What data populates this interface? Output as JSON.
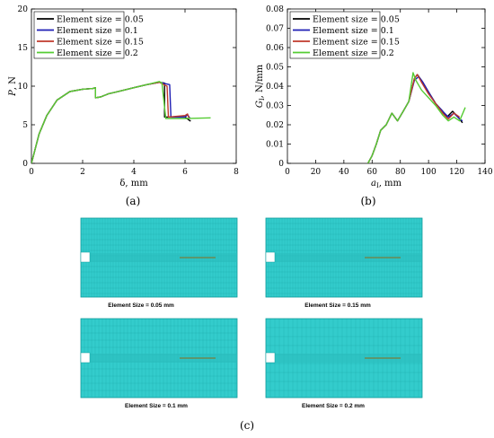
{
  "chart_data": [
    {
      "type": "line",
      "panel_label": "(a)",
      "xlabel": "δ, mm",
      "ylabel": "P, N",
      "xlim": [
        0,
        8
      ],
      "ylim": [
        0,
        20
      ],
      "xticks": [
        "0",
        "2",
        "4",
        "6",
        "8"
      ],
      "yticks": [
        "0",
        "5",
        "10",
        "15",
        "20"
      ],
      "grid": false,
      "legend_position": "top-left",
      "series": [
        {
          "name": "Element size = 0.05",
          "color": "#000000",
          "points": [
            [
              0,
              0
            ],
            [
              0.3,
              3.8
            ],
            [
              0.6,
              6.2
            ],
            [
              1.0,
              8.2
            ],
            [
              1.5,
              9.3
            ],
            [
              2.0,
              9.6
            ],
            [
              2.4,
              9.7
            ],
            [
              2.5,
              9.8
            ],
            [
              2.5,
              8.5
            ],
            [
              2.7,
              8.6
            ],
            [
              3.0,
              9.0
            ],
            [
              3.5,
              9.4
            ],
            [
              4.0,
              9.8
            ],
            [
              4.5,
              10.2
            ],
            [
              5.0,
              10.5
            ],
            [
              5.2,
              10.4
            ],
            [
              5.2,
              6.0
            ],
            [
              6.0,
              6.0
            ],
            [
              6.2,
              5.5
            ],
            [
              6.2,
              5.6
            ]
          ]
        },
        {
          "name": "Element size = 0.1",
          "color": "#1f1fb4",
          "points": [
            [
              0,
              0
            ],
            [
              0.3,
              3.8
            ],
            [
              0.6,
              6.2
            ],
            [
              1.0,
              8.2
            ],
            [
              1.5,
              9.3
            ],
            [
              2.0,
              9.6
            ],
            [
              2.4,
              9.7
            ],
            [
              2.5,
              9.8
            ],
            [
              2.5,
              8.5
            ],
            [
              2.7,
              8.6
            ],
            [
              3.0,
              9.0
            ],
            [
              3.5,
              9.4
            ],
            [
              4.0,
              9.8
            ],
            [
              4.5,
              10.2
            ],
            [
              5.0,
              10.5
            ],
            [
              5.4,
              10.2
            ],
            [
              5.45,
              6.0
            ],
            [
              6.0,
              6.0
            ],
            [
              6.1,
              6.3
            ],
            [
              6.2,
              5.8
            ]
          ]
        },
        {
          "name": "Element size = 0.15",
          "color": "#c0392b",
          "points": [
            [
              0,
              0
            ],
            [
              0.3,
              3.8
            ],
            [
              0.6,
              6.2
            ],
            [
              1.0,
              8.2
            ],
            [
              1.5,
              9.3
            ],
            [
              2.0,
              9.6
            ],
            [
              2.4,
              9.7
            ],
            [
              2.5,
              9.8
            ],
            [
              2.5,
              8.5
            ],
            [
              2.7,
              8.6
            ],
            [
              3.0,
              9.0
            ],
            [
              3.5,
              9.4
            ],
            [
              4.0,
              9.8
            ],
            [
              4.5,
              10.2
            ],
            [
              5.0,
              10.5
            ],
            [
              5.3,
              10.0
            ],
            [
              5.35,
              6.0
            ],
            [
              6.0,
              6.2
            ],
            [
              6.1,
              6.4
            ],
            [
              6.15,
              5.9
            ]
          ]
        },
        {
          "name": "Element size = 0.2",
          "color": "#55cc33",
          "points": [
            [
              0,
              0
            ],
            [
              0.3,
              3.8
            ],
            [
              0.6,
              6.2
            ],
            [
              1.0,
              8.2
            ],
            [
              1.5,
              9.3
            ],
            [
              2.0,
              9.6
            ],
            [
              2.4,
              9.7
            ],
            [
              2.5,
              9.8
            ],
            [
              2.5,
              8.5
            ],
            [
              2.7,
              8.6
            ],
            [
              3.0,
              9.0
            ],
            [
              3.5,
              9.4
            ],
            [
              4.0,
              9.8
            ],
            [
              4.5,
              10.2
            ],
            [
              5.0,
              10.6
            ],
            [
              5.1,
              10.4
            ],
            [
              5.25,
              5.8
            ],
            [
              6.0,
              5.8
            ],
            [
              7.0,
              5.9
            ]
          ]
        }
      ]
    },
    {
      "type": "line",
      "panel_label": "(b)",
      "xlabel": "a_I, mm",
      "ylabel": "G_I, N/mm",
      "xlim": [
        0,
        140
      ],
      "ylim": [
        0,
        0.08
      ],
      "xticks": [
        "0",
        "20",
        "40",
        "60",
        "80",
        "100",
        "120",
        "140"
      ],
      "yticks": [
        "0",
        "0.01",
        "0.02",
        "0.03",
        "0.04",
        "0.05",
        "0.06",
        "0.07",
        "0.08"
      ],
      "grid": false,
      "legend_position": "top-left",
      "series": [
        {
          "name": "Element size = 0.05",
          "color": "#000000",
          "points": [
            [
              57,
              0
            ],
            [
              60,
              0.004
            ],
            [
              63,
              0.01
            ],
            [
              66,
              0.017
            ],
            [
              70,
              0.02
            ],
            [
              74,
              0.026
            ],
            [
              78,
              0.022
            ],
            [
              82,
              0.027
            ],
            [
              86,
              0.032
            ],
            [
              90,
              0.044
            ],
            [
              92,
              0.046
            ],
            [
              95,
              0.043
            ],
            [
              100,
              0.037
            ],
            [
              105,
              0.031
            ],
            [
              110,
              0.027
            ],
            [
              113,
              0.024
            ],
            [
              117,
              0.027
            ],
            [
              121,
              0.024
            ],
            [
              124,
              0.021
            ]
          ]
        },
        {
          "name": "Element size = 0.1",
          "color": "#1f1fb4",
          "points": [
            [
              57,
              0
            ],
            [
              60,
              0.004
            ],
            [
              63,
              0.01
            ],
            [
              66,
              0.017
            ],
            [
              70,
              0.02
            ],
            [
              74,
              0.026
            ],
            [
              78,
              0.022
            ],
            [
              82,
              0.027
            ],
            [
              86,
              0.032
            ],
            [
              90,
              0.043
            ],
            [
              93,
              0.045
            ],
            [
              96,
              0.042
            ],
            [
              100,
              0.037
            ],
            [
              105,
              0.031
            ],
            [
              110,
              0.027
            ],
            [
              114,
              0.024
            ],
            [
              118,
              0.026
            ],
            [
              122,
              0.023
            ],
            [
              124,
              0.022
            ]
          ]
        },
        {
          "name": "Element size = 0.15",
          "color": "#c0392b",
          "points": [
            [
              57,
              0
            ],
            [
              60,
              0.004
            ],
            [
              63,
              0.01
            ],
            [
              66,
              0.017
            ],
            [
              70,
              0.02
            ],
            [
              74,
              0.026
            ],
            [
              78,
              0.022
            ],
            [
              82,
              0.027
            ],
            [
              86,
              0.032
            ],
            [
              90,
              0.044
            ],
            [
              92,
              0.046
            ],
            [
              95,
              0.042
            ],
            [
              100,
              0.036
            ],
            [
              105,
              0.031
            ],
            [
              110,
              0.026
            ],
            [
              114,
              0.023
            ],
            [
              118,
              0.026
            ],
            [
              122,
              0.024
            ]
          ]
        },
        {
          "name": "Element size = 0.2",
          "color": "#55cc33",
          "points": [
            [
              57,
              0
            ],
            [
              60,
              0.004
            ],
            [
              63,
              0.01
            ],
            [
              66,
              0.017
            ],
            [
              70,
              0.02
            ],
            [
              74,
              0.026
            ],
            [
              78,
              0.022
            ],
            [
              82,
              0.027
            ],
            [
              86,
              0.032
            ],
            [
              89,
              0.047
            ],
            [
              91,
              0.043
            ],
            [
              95,
              0.038
            ],
            [
              100,
              0.034
            ],
            [
              105,
              0.03
            ],
            [
              110,
              0.025
            ],
            [
              114,
              0.022
            ],
            [
              118,
              0.024
            ],
            [
              122,
              0.022
            ],
            [
              126,
              0.029
            ]
          ]
        }
      ]
    }
  ],
  "meshes": {
    "panel_label": "(c)",
    "fill_color": "#33cccc",
    "line_color": "#0e9a9a",
    "crack_color": "#8a6d1a",
    "items": [
      {
        "caption": "Element Size = 0.05 mm"
      },
      {
        "caption": "Element Size = 0.15 mm"
      },
      {
        "caption": "Element Size = 0.1 mm"
      },
      {
        "caption": "Element Size = 0.2 mm"
      }
    ]
  }
}
